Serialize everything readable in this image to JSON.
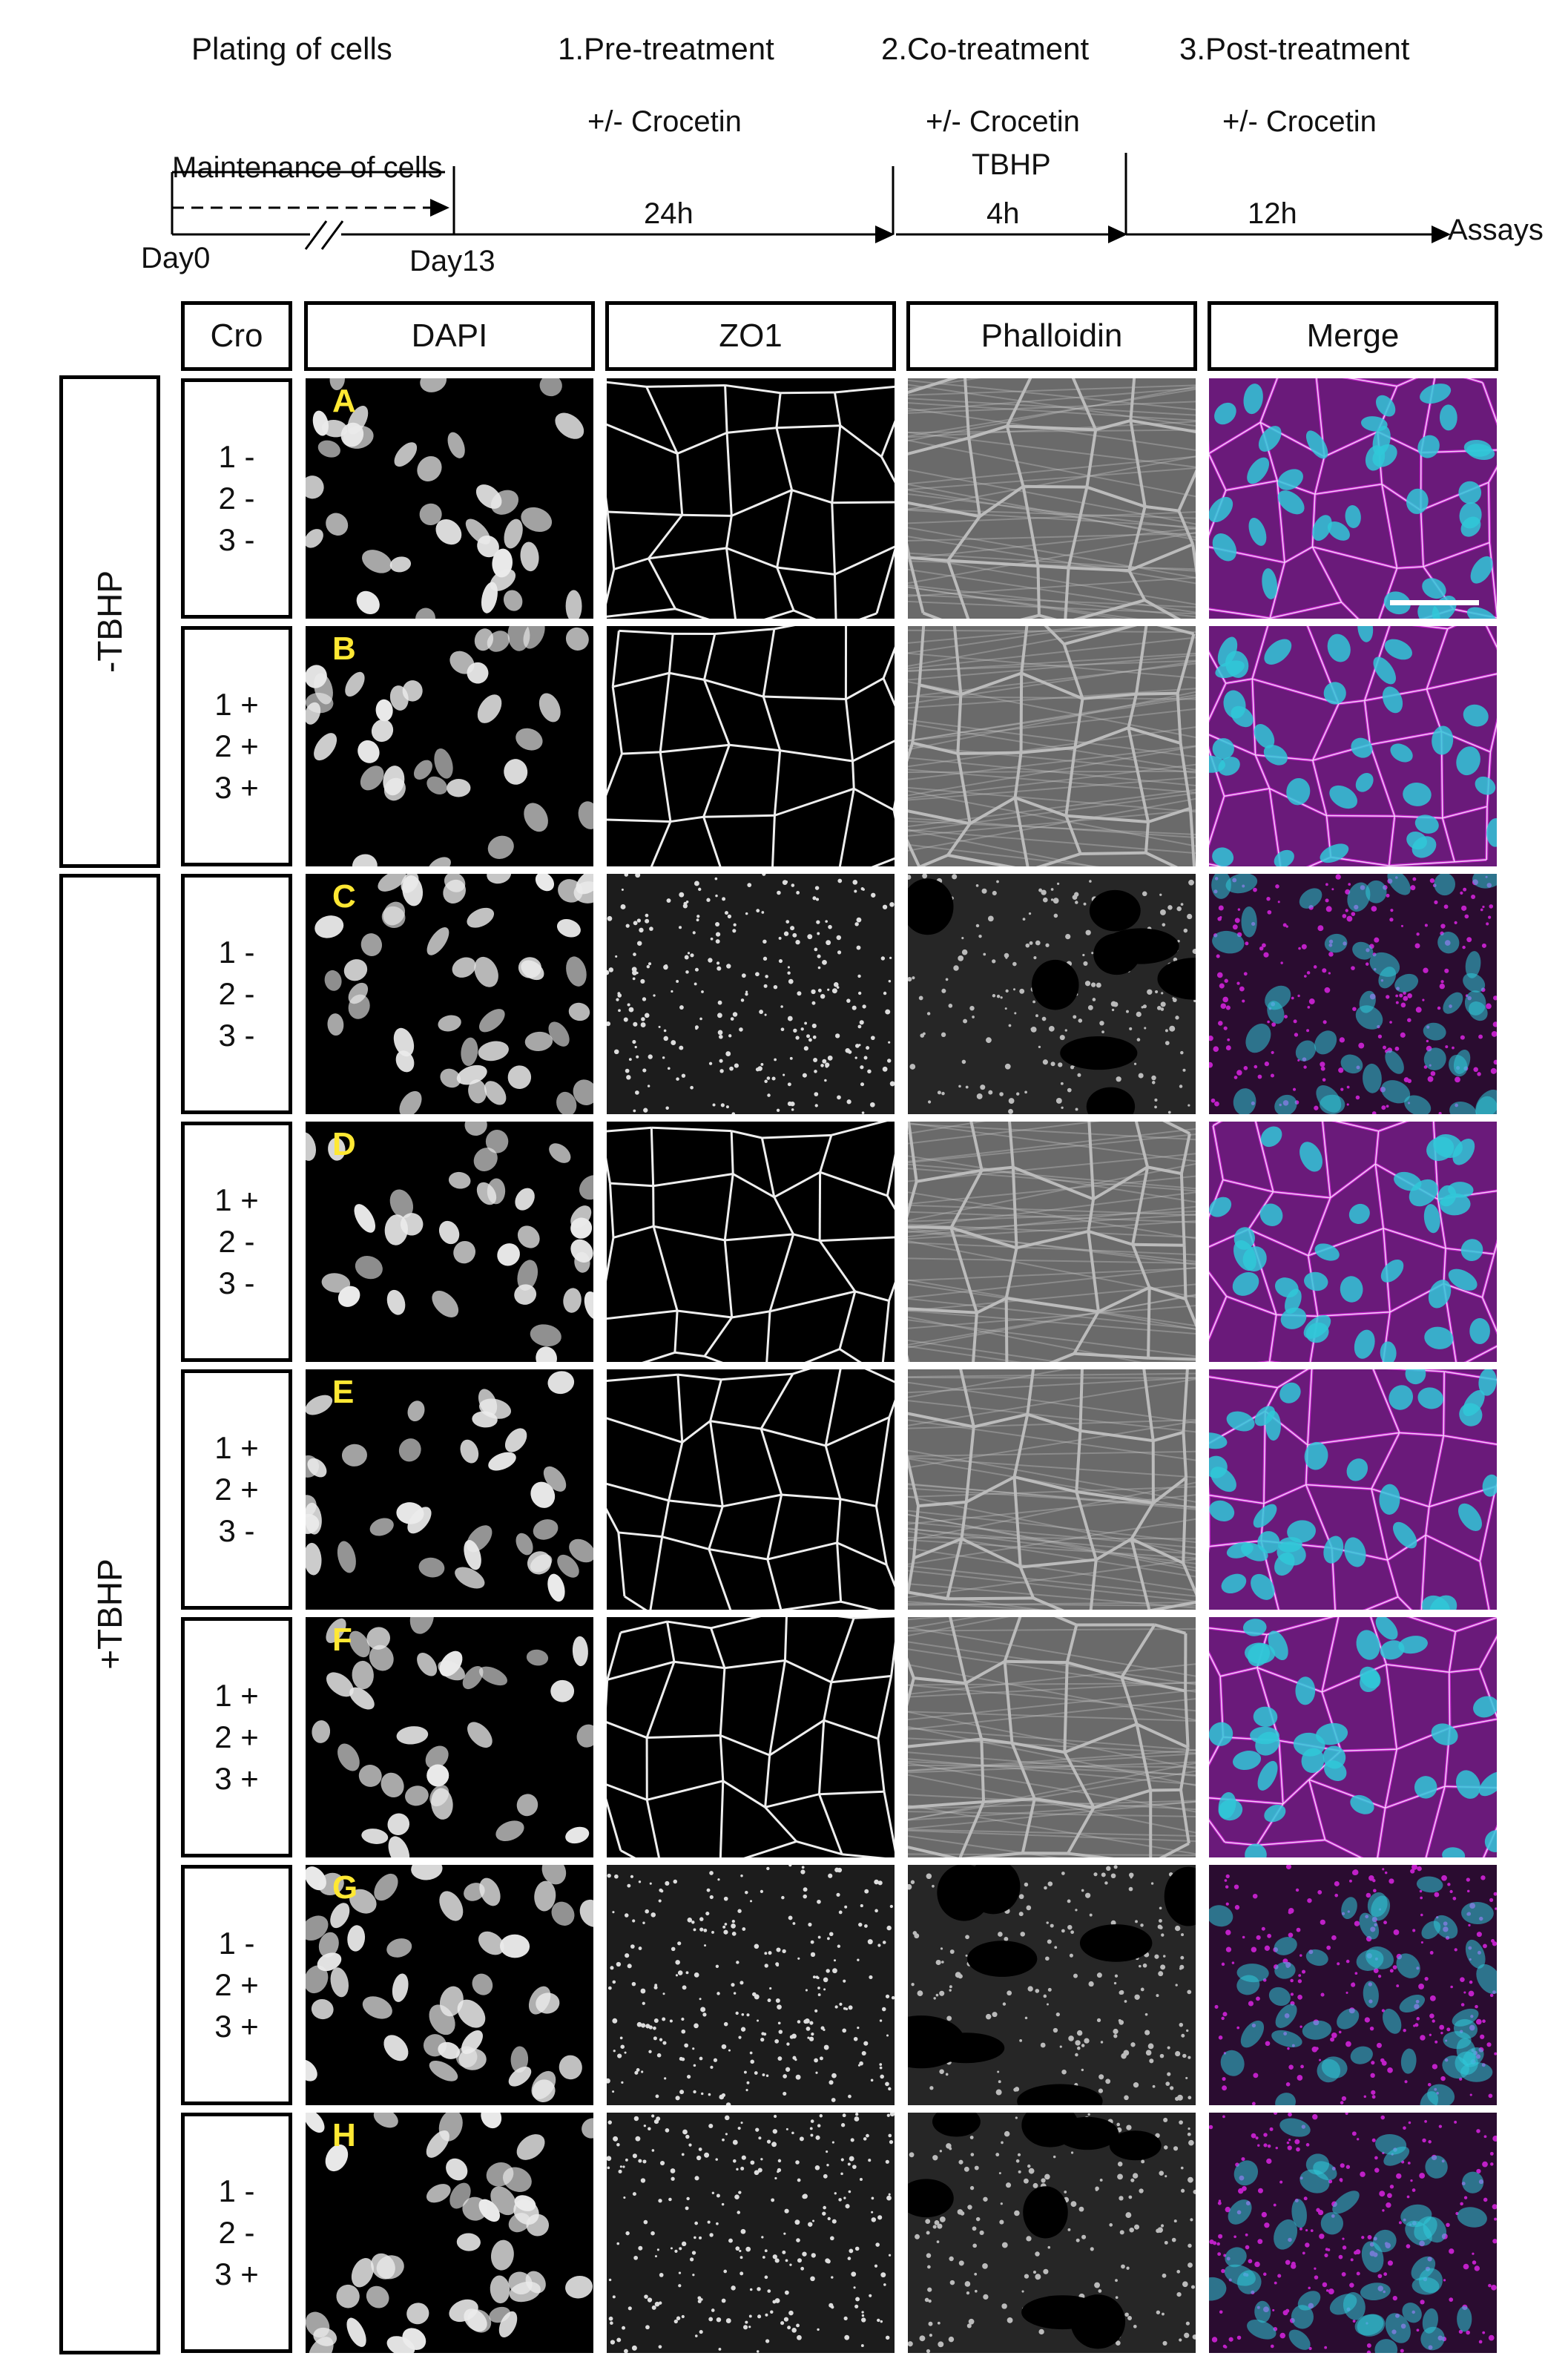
{
  "timeline": {
    "stage_plating": "Plating of cells",
    "stage_pre": "1.Pre-treatment",
    "stage_co": "2.Co-treatment",
    "stage_post": "3.Post-treatment",
    "pre_agent": "+/- Crocetin",
    "co_agent": "+/- Crocetin",
    "co_agent2": "TBHP",
    "post_agent": "+/- Crocetin",
    "maintenance": "Maintenance of cells",
    "day0": "Day0",
    "day13": "Day13",
    "pre_duration": "24h",
    "co_duration": "4h",
    "post_duration": "12h",
    "assays": "Assays"
  },
  "headers": {
    "cro": "Cro",
    "dapi": "DAPI",
    "zo1": "ZO1",
    "phalloidin": "Phalloidin",
    "merge": "Merge"
  },
  "groups": {
    "minus_tbhp": "-TBHP",
    "plus_tbhp": "+TBHP"
  },
  "rows": [
    {
      "letter": "A",
      "l1": "1 -",
      "l2": "2 -",
      "l3": "3 -",
      "state": "healthy"
    },
    {
      "letter": "B",
      "l1": "1 +",
      "l2": "2 +",
      "l3": "3 +",
      "state": "healthy"
    },
    {
      "letter": "C",
      "l1": "1 -",
      "l2": "2 -",
      "l3": "3 -",
      "state": "damaged"
    },
    {
      "letter": "D",
      "l1": "1 +",
      "l2": "2 -",
      "l3": "3 -",
      "state": "healthy"
    },
    {
      "letter": "E",
      "l1": "1 +",
      "l2": "2 +",
      "l3": "3 -",
      "state": "healthy"
    },
    {
      "letter": "F",
      "l1": "1 +",
      "l2": "2 +",
      "l3": "3 +",
      "state": "healthy"
    },
    {
      "letter": "G",
      "l1": "1 -",
      "l2": "2 +",
      "l3": "3 +",
      "state": "damaged"
    },
    {
      "letter": "H",
      "l1": "1 -",
      "l2": "2 -",
      "l3": "3 +",
      "state": "damaged"
    }
  ],
  "colors": {
    "label_yellow": "#ffe833",
    "merge_magenta": "#c020c8",
    "merge_cyan": "#30c8d8"
  }
}
